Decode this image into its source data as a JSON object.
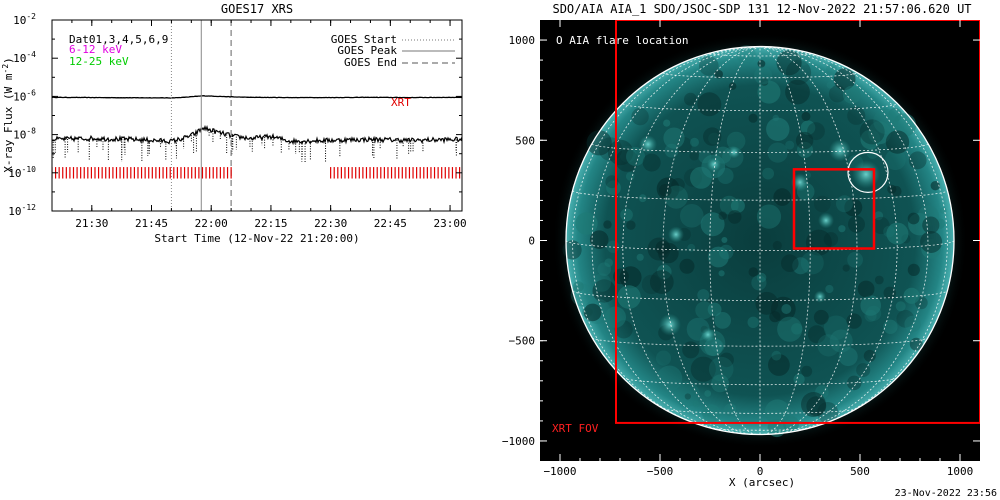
{
  "goes_panel": {
    "title": "GOES17 XRS",
    "ylabel": "X-ray Flux (W m",
    "ylabel_sup": "-2",
    "ylabel_close": ")",
    "xlabel": "Start Time (12-Nov-22 21:20:00)",
    "channels_text": "Dat01,3,4,5,6,9",
    "band_low": "6-12 keV",
    "band_high": "12-25 keV",
    "legend": [
      {
        "label": "GOES Start",
        "style": "dotted"
      },
      {
        "label": "GOES Peak",
        "style": "solid"
      },
      {
        "label": "GOES End",
        "style": "dashed"
      }
    ],
    "xrt_label": "XRT",
    "colors": {
      "band_low": "#e000e0",
      "band_high": "#00cc00",
      "xrt": "#e00000",
      "axis": "#000000"
    }
  },
  "aia_panel": {
    "title": "SDO/AIA AIA_1 SDO/JSOC-SDP 131 12-Nov-2022 21:57:06.620 UT",
    "flare_label": "O AIA flare location",
    "fov_label": "XRT FOV",
    "xlabel": "X (arcsec)",
    "colors": {
      "background": "#000000",
      "disk": "#0e4a4a",
      "grid": "#ffffff",
      "fov": "#ff0000",
      "text": "#ffffff"
    }
  },
  "footer": {
    "timestamp": "23-Nov-2022 23:56"
  },
  "chart_data": [
    {
      "type": "line",
      "title": "GOES17 XRS",
      "xlabel": "Start Time (12-Nov-22 21:20:00)",
      "ylabel": "X-ray Flux (W m-2)",
      "yscale": "log",
      "ylim": [
        1e-12,
        0.01
      ],
      "xlim_minutes": [
        0,
        103
      ],
      "x_ticks": [
        "21:30",
        "21:45",
        "22:00",
        "22:15",
        "22:30",
        "22:45",
        "23:00"
      ],
      "x_tick_minutes": [
        10,
        25,
        40,
        55,
        70,
        85,
        100
      ],
      "y_ticks": [
        "10^-2",
        "10^-4",
        "10^-6",
        "10^-8",
        "10^-10",
        "10^-12"
      ],
      "y_tick_exponents": [
        -2,
        -4,
        -6,
        -8,
        -10,
        -12
      ],
      "markers": [
        {
          "label": "GOES Start",
          "minute": 30
        },
        {
          "label": "GOES Peak",
          "minute": 37.5
        },
        {
          "label": "GOES End",
          "minute": 45
        }
      ],
      "series": [
        {
          "name": "6-12 keV",
          "x_minutes": [
            0,
            10,
            20,
            30,
            33,
            36,
            38,
            42,
            46,
            50,
            60,
            70,
            80,
            90,
            103
          ],
          "log10_flux": [
            -6.05,
            -6.06,
            -6.07,
            -6.08,
            -6.05,
            -6.0,
            -5.97,
            -6.0,
            -6.03,
            -6.05,
            -6.06,
            -6.06,
            -6.05,
            -6.06,
            -6.05
          ]
        },
        {
          "name": "12-25 keV",
          "x_minutes": [
            0,
            10,
            20,
            30,
            33,
            36,
            38,
            42,
            46,
            50,
            55,
            60,
            70,
            80,
            90,
            103
          ],
          "log10_flux": [
            -8.25,
            -8.2,
            -8.25,
            -8.35,
            -8.2,
            -7.95,
            -7.65,
            -7.9,
            -8.1,
            -8.2,
            -8.1,
            -8.35,
            -8.3,
            -8.25,
            -8.3,
            -8.25
          ]
        }
      ],
      "xrt_coverage_minutes": [
        [
          0,
          45.5
        ],
        [
          70,
          103
        ]
      ]
    },
    {
      "type": "scatter",
      "title": "SDO/AIA AIA_1 SDO/JSOC-SDP 131 12-Nov-2022 21:57:06.620 UT",
      "xlabel": "X (arcsec)",
      "xlim": [
        -1100,
        1100
      ],
      "ylim": [
        -1100,
        1100
      ],
      "x_ticks": [
        -1000,
        -500,
        0,
        500,
        1000
      ],
      "y_ticks": [
        1000,
        500,
        0,
        -500,
        -1000
      ],
      "solar_radius_arcsec": 970,
      "flare_location": [
        540,
        340
      ],
      "flare_circle_radius_arcsec": 100,
      "aia_box": {
        "x": [
          170,
          570
        ],
        "y": [
          -40,
          355
        ]
      },
      "xrt_fov": {
        "x": [
          -720,
          1100
        ],
        "y": [
          -910,
          1100
        ]
      }
    }
  ]
}
